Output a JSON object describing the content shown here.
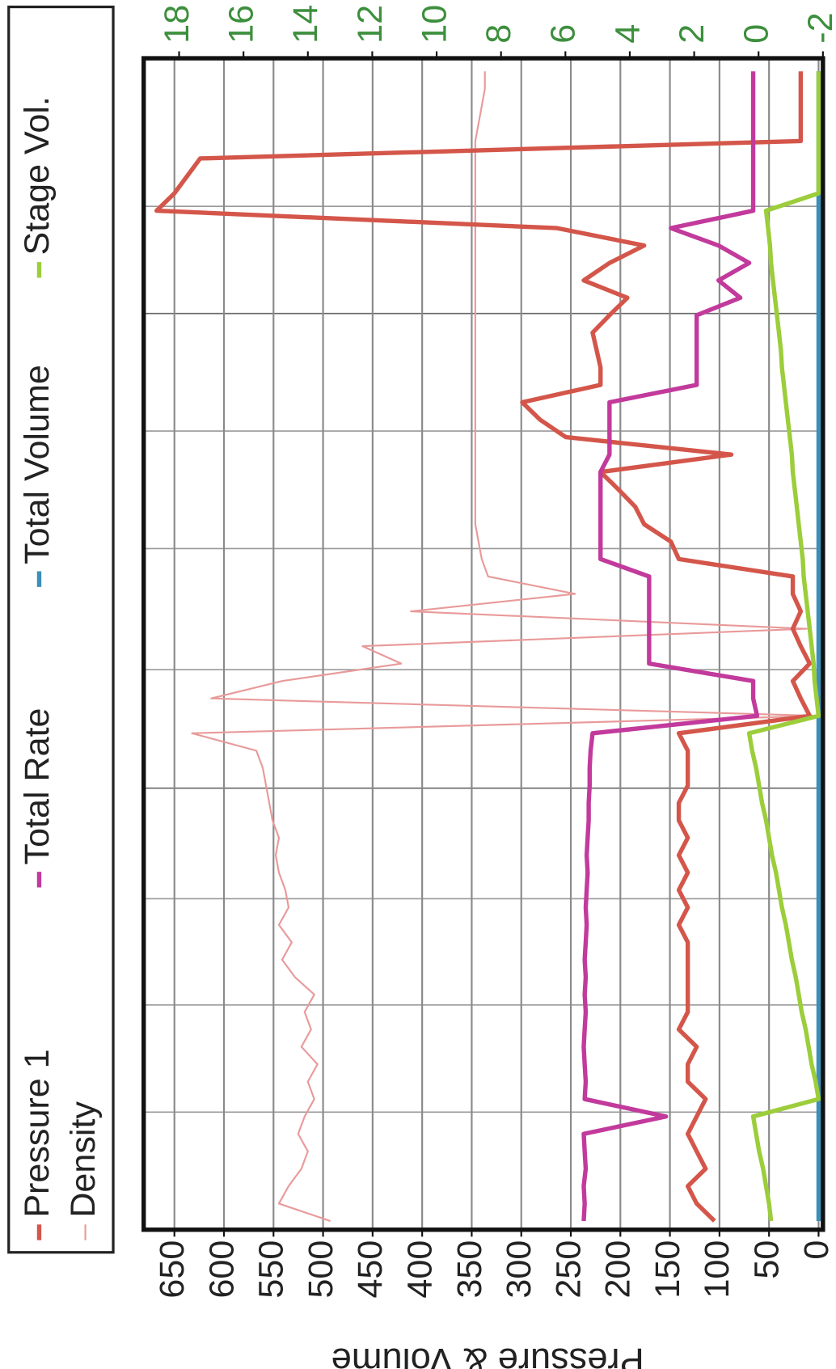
{
  "chart_data": {
    "type": "line",
    "y_label": "Pressure & Volume",
    "ylim": [
      -4.4,
      681
    ],
    "yticks": [
      0,
      50,
      100,
      150,
      200,
      250,
      300,
      350,
      400,
      450,
      500,
      550,
      600,
      650
    ],
    "y2lim": [
      -2,
      19.1
    ],
    "y2ticks": [
      -2,
      0,
      2,
      4,
      6,
      8,
      10,
      12,
      14,
      16,
      18
    ],
    "grid": true,
    "legend": "top",
    "series": [
      {
        "name": "Pressure 1",
        "color": "#d4564a",
        "values": [
          105,
          123,
          132,
          114,
          123,
          132,
          123,
          114,
          132,
          132,
          123,
          141,
          132,
          132,
          132,
          132,
          132,
          141,
          132,
          141,
          132,
          141,
          132,
          141,
          141,
          132,
          132,
          132,
          141,
          9,
          18,
          26,
          9,
          18,
          26,
          18,
          26,
          26,
          141,
          149,
          176,
          185,
          202,
          220,
          88,
          255,
          281,
          299,
          220,
          220,
          224,
          228,
          211,
          193,
          237,
          211,
          176,
          264,
          668,
          650,
          637,
          624,
          18,
          18,
          18,
          18,
          18
        ]
      },
      {
        "name": "Total Rate",
        "color": "#c23a9c",
        "values": [
          237,
          236,
          237,
          235,
          236,
          237,
          154,
          236,
          235,
          236,
          237,
          236,
          235,
          236,
          235,
          236,
          235,
          234,
          235,
          234,
          233,
          234,
          233,
          232,
          232,
          231,
          231,
          230,
          228,
          62,
          66,
          66,
          171,
          171,
          171,
          171,
          171,
          171,
          220,
          220,
          220,
          220,
          220,
          220,
          211,
          211,
          211,
          211,
          123,
          123,
          123,
          123,
          123,
          79,
          101,
          70,
          101,
          149,
          66,
          66,
          66,
          66,
          66,
          66,
          66,
          66,
          66
        ]
      },
      {
        "name": "Total Volume",
        "color": "#3b8fb8",
        "values": [
          0,
          0,
          0,
          0,
          0,
          0,
          0,
          0,
          0,
          0,
          0,
          0,
          0,
          0,
          0,
          0,
          0,
          0,
          0,
          0,
          0,
          0,
          0,
          0,
          0,
          0,
          0,
          0,
          0,
          0,
          0,
          0,
          0,
          0,
          0,
          0,
          0,
          0,
          0,
          0,
          0,
          0,
          0,
          0,
          0,
          0,
          0,
          0,
          0,
          0,
          0,
          0,
          0,
          0,
          0,
          0,
          0,
          0,
          0,
          0,
          0,
          0,
          0,
          0,
          0,
          0,
          0
        ]
      },
      {
        "name": "Stage Vol.",
        "color": "#9ccd3a",
        "values": [
          48,
          50,
          53,
          56,
          60,
          63,
          66,
          0,
          3,
          7,
          10,
          13,
          17,
          20,
          23,
          27,
          30,
          33,
          37,
          40,
          43,
          47,
          50,
          53,
          57,
          60,
          63,
          67,
          70,
          0,
          2,
          4,
          5,
          7,
          9,
          11,
          13,
          15,
          16,
          18,
          20,
          22,
          24,
          26,
          27,
          29,
          31,
          33,
          35,
          37,
          38,
          40,
          42,
          44,
          46,
          48,
          49,
          51,
          53,
          0,
          0,
          0,
          0,
          0,
          0,
          0,
          0
        ]
      },
      {
        "name": "Density",
        "color": "#e99a9a",
        "axis": "y2",
        "values": [
          13.3,
          14.9,
          14.6,
          14.2,
          14.0,
          14.3,
          14.1,
          13.8,
          14.0,
          13.7,
          14.2,
          13.9,
          14.1,
          13.8,
          14.4,
          14.8,
          14.5,
          14.9,
          14.6,
          14.7,
          14.9,
          15.0,
          14.9,
          15.1,
          15.2,
          15.3,
          15.4,
          15.6,
          17.6,
          -1.9,
          17.0,
          14.8,
          11.1,
          12.3,
          -1.5,
          10.8,
          5.7,
          8.4,
          8.6,
          8.7,
          8.8,
          8.8,
          8.8,
          8.8,
          8.8,
          8.8,
          8.8,
          8.8,
          8.8,
          8.8,
          8.8,
          8.8,
          8.8,
          8.8,
          8.8,
          8.8,
          8.8,
          8.8,
          8.8,
          8.8,
          8.8,
          8.8,
          8.8,
          8.7,
          8.6,
          8.5,
          8.5
        ]
      }
    ]
  }
}
